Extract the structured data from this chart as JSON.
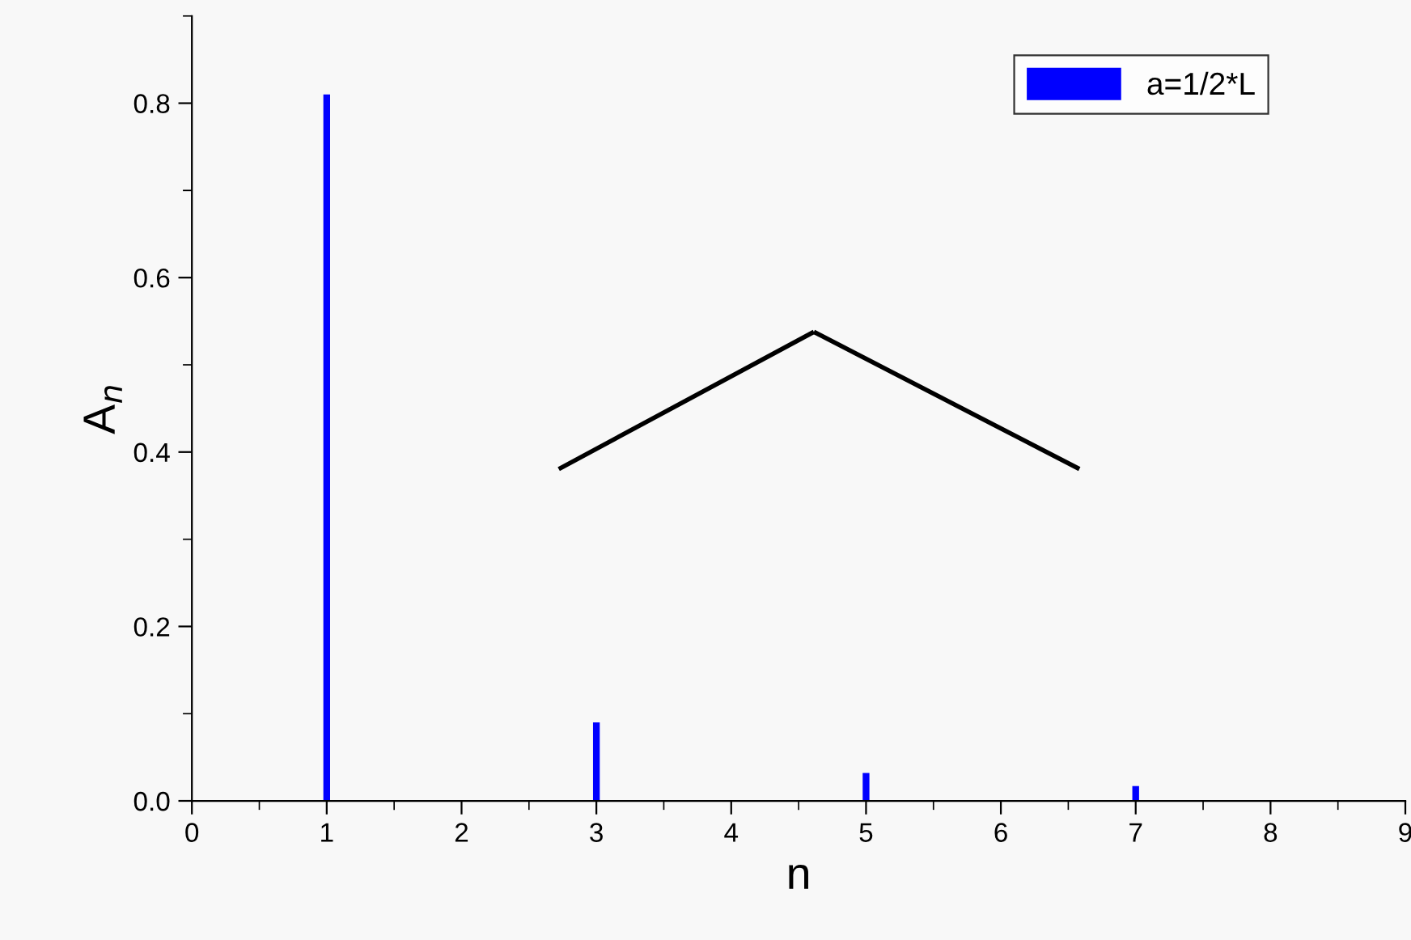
{
  "chart_data": {
    "type": "bar",
    "xlabel": "n",
    "ylabel": "A$_{n}$",
    "x": [
      1,
      2,
      3,
      4,
      5,
      6,
      7,
      8
    ],
    "series": [
      {
        "name": "a=1/2*L",
        "color": "#0000ff",
        "values": [
          0.81,
          0,
          0.09,
          0,
          0.032,
          0,
          0.017,
          0
        ]
      }
    ],
    "xlim": [
      0,
      9
    ],
    "xticks": [
      0,
      1,
      2,
      3,
      4,
      5,
      6,
      7,
      8,
      9
    ],
    "ylim": [
      0,
      0.9
    ],
    "yticks": [
      {
        "value": 0,
        "label": "0.0"
      },
      0.2,
      0.4,
      0.6,
      0.8
    ],
    "grid": false,
    "legend": "top right"
  }
}
